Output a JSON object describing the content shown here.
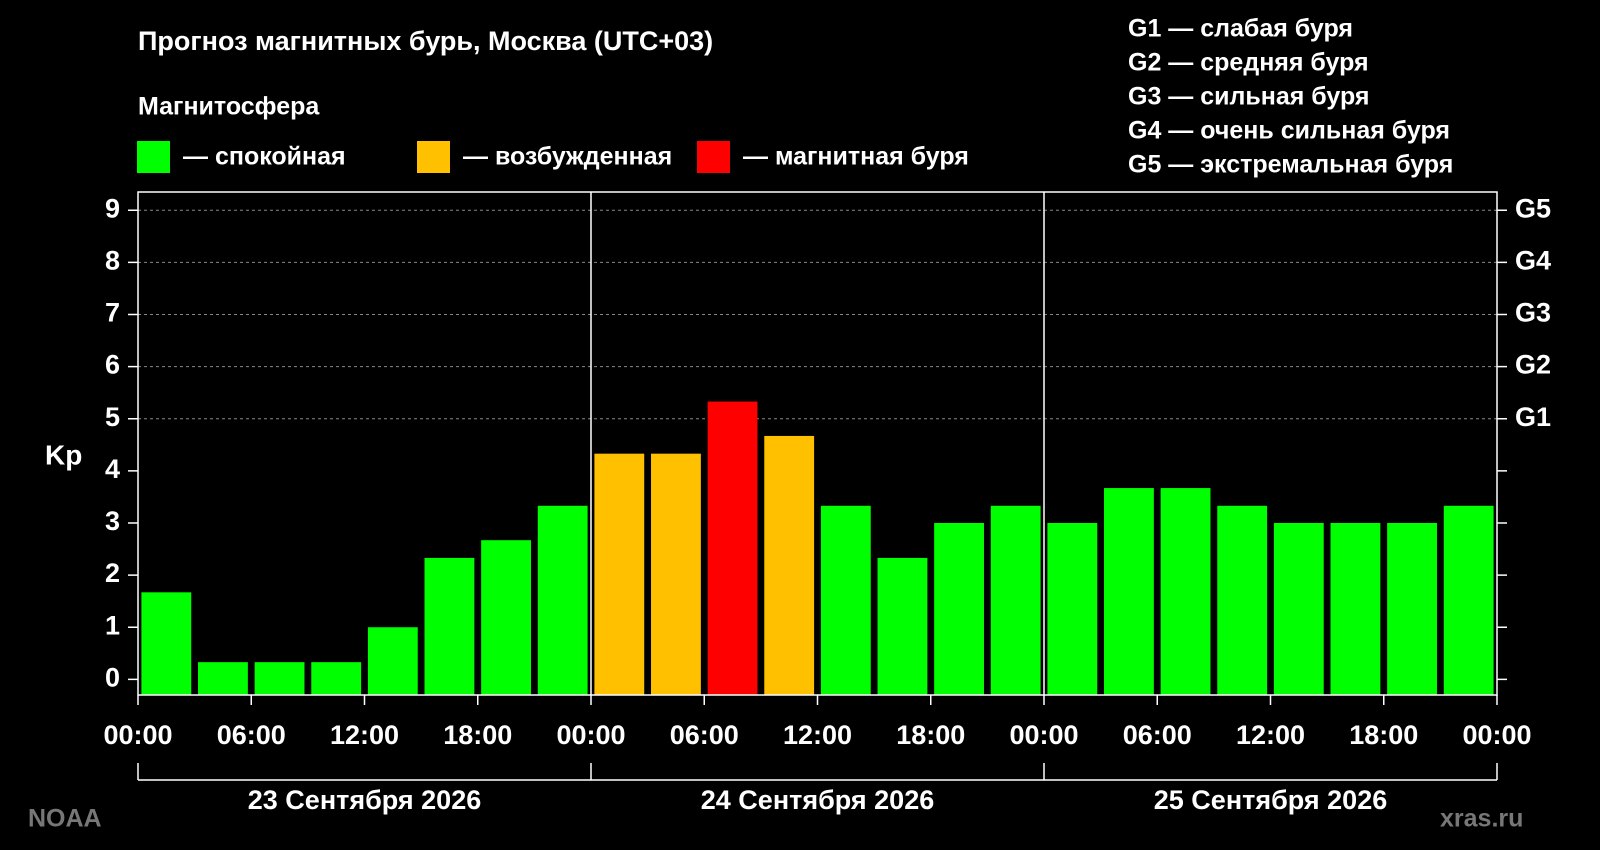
{
  "chart_data": {
    "type": "bar",
    "title": "Прогноз магнитных бурь, Москва (UTC+03)",
    "legend_title": "Магнитосфера",
    "legend": [
      {
        "label": "— спокойная",
        "color": "#00ff00"
      },
      {
        "label": "— возбужденная",
        "color": "#ffc000"
      },
      {
        "label": "— магнитная буря",
        "color": "#ff0000"
      }
    ],
    "storm_levels": [
      "G1 — слабая буря",
      "G2 — средняя буря",
      "G3 — сильная буря",
      "G4 — очень сильная буря",
      "G5 — экстремальная буря"
    ],
    "y_label": "Kp",
    "x": [
      1.5,
      4.5,
      7.5,
      10.5,
      13.5,
      16.5,
      19.5,
      22.5,
      25.5,
      28.5,
      31.5,
      34.5,
      37.5,
      40.5,
      43.5,
      46.5,
      49.5,
      52.5,
      55.5,
      58.5,
      61.5,
      64.5,
      67.5,
      70.5
    ],
    "values": [
      1.67,
      0.33,
      0.33,
      0.33,
      1.0,
      2.33,
      2.67,
      3.33,
      4.33,
      4.33,
      5.33,
      4.67,
      3.33,
      2.33,
      3.0,
      3.33,
      3.0,
      3.67,
      3.67,
      3.33,
      3.0,
      3.0,
      3.0,
      3.33
    ],
    "colors": [
      "#00ff00",
      "#00ff00",
      "#00ff00",
      "#00ff00",
      "#00ff00",
      "#00ff00",
      "#00ff00",
      "#00ff00",
      "#ffc000",
      "#ffc000",
      "#ff0000",
      "#ffc000",
      "#00ff00",
      "#00ff00",
      "#00ff00",
      "#00ff00",
      "#00ff00",
      "#00ff00",
      "#00ff00",
      "#00ff00",
      "#00ff00",
      "#00ff00",
      "#00ff00",
      "#00ff00"
    ],
    "xlim": [
      0,
      72
    ],
    "xticks": [
      {
        "value": 0,
        "label": "00:00"
      },
      {
        "value": 6,
        "label": "06:00"
      },
      {
        "value": 12,
        "label": "12:00"
      },
      {
        "value": 18,
        "label": "18:00"
      },
      {
        "value": 24,
        "label": "00:00"
      },
      {
        "value": 30,
        "label": "06:00"
      },
      {
        "value": 36,
        "label": "12:00"
      },
      {
        "value": 42,
        "label": "18:00"
      },
      {
        "value": 48,
        "label": "00:00"
      },
      {
        "value": 54,
        "label": "06:00"
      },
      {
        "value": 60,
        "label": "12:00"
      },
      {
        "value": 66,
        "label": "18:00"
      },
      {
        "value": 72,
        "label": "00:00"
      }
    ],
    "days": [
      "23 Сентября 2026",
      "24 Сентября 2026",
      "25 Сентября 2026"
    ],
    "ylim": [
      -0.3,
      9.35
    ],
    "yticks": [
      0,
      1,
      2,
      3,
      4,
      5,
      6,
      7,
      8,
      9
    ],
    "y2ticks": [
      {
        "value": 5,
        "label": "G1"
      },
      {
        "value": 6,
        "label": "G2"
      },
      {
        "value": 7,
        "label": "G3"
      },
      {
        "value": 8,
        "label": "G4"
      },
      {
        "value": 9,
        "label": "G5"
      }
    ],
    "grid": true,
    "source": "NOAA",
    "site": "xras.ru"
  }
}
